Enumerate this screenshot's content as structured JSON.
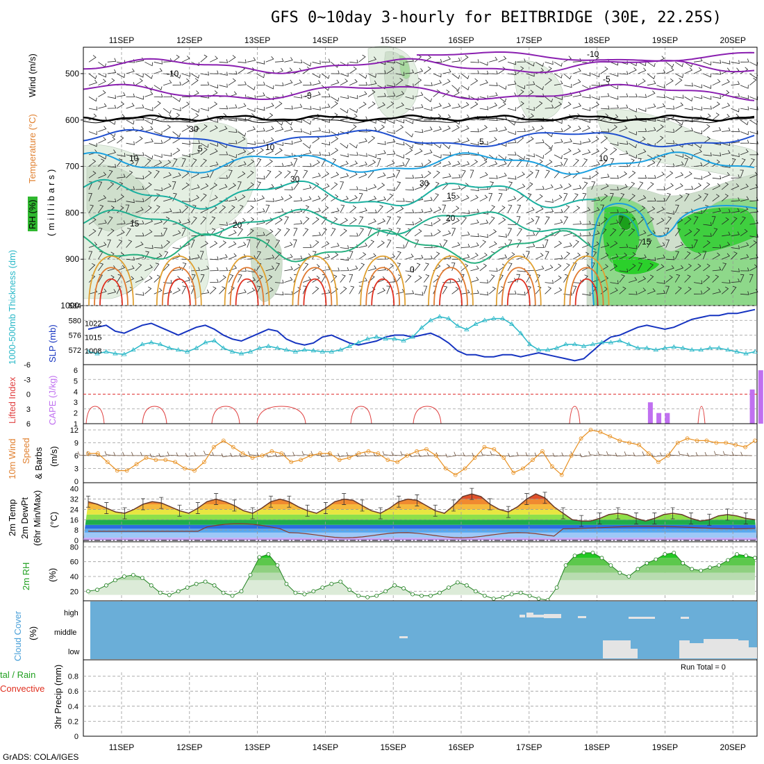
{
  "title": "GFS 0~10day 3-hourly for BEITBRIDGE (30E, 22.25S)",
  "footer": "GrADS: COLA/IGES",
  "dates": [
    "11SEP",
    "12SEP",
    "13SEP",
    "14SEP",
    "15SEP",
    "16SEP",
    "17SEP",
    "18SEP",
    "19SEP",
    "20SEP"
  ],
  "colors": {
    "purple": "#8a1fb0",
    "black": "#000000",
    "blue": "#1f4fcf",
    "cyan": "#1aa0e0",
    "teal": "#1ab0a0",
    "orange": "#e0a030",
    "red": "#e03020",
    "slp": "#1533c0",
    "thick": "#2ab8c8",
    "li": "#e04040",
    "cape": "#c070f0",
    "spd": "#e89020",
    "rh": "#20a020",
    "cloud": "#6aaed8",
    "grid": "#999999"
  },
  "panels": {
    "upper": {
      "ylabel_rh": "RH (%)",
      "ylabel_temp": "Temperature (°C)",
      "ylabel_wind": "Wind (m/s)",
      "ylabel_p": "(millibars)",
      "pressure_ticks": [
        "500",
        "600",
        "700",
        "800",
        "900",
        "1000"
      ],
      "contour_labels": [
        "-10",
        "-10",
        "-5",
        "-5",
        "5",
        "5",
        "10",
        "15",
        "15",
        "20",
        "20",
        "15",
        "0",
        "10",
        "10",
        "30",
        "30",
        "30"
      ]
    },
    "thick": {
      "label_thick": "1000-500mb Thickness (dm)",
      "label_slp": "SLP (mb)",
      "left_ticks": [
        "584",
        "580",
        "576",
        "572"
      ],
      "right_ticks": [
        "1022",
        "1015",
        "1008"
      ]
    },
    "li": {
      "label_li": "Lifted Index",
      "label_cape": "CAPE (J/kg)",
      "left_ticks": [
        "-6",
        "-3",
        "0",
        "3",
        "6"
      ],
      "right_ticks": [
        "6",
        "5",
        "4",
        "3",
        "2",
        "1"
      ]
    },
    "wind": {
      "label_10m": "10m Wind",
      "label_speed": "Speed",
      "label_barbs": "& Barbs",
      "unit": "(m/s)",
      "ticks": [
        "12",
        "9",
        "6",
        "3",
        "0"
      ]
    },
    "temp": {
      "label_1": "2m Temp",
      "label_2": "2m DewPt",
      "label_3": "(6hr Min/Max)",
      "unit": "(°C)",
      "ticks": [
        "40",
        "32",
        "24",
        "16",
        "8",
        "0"
      ]
    },
    "rh": {
      "label": "2m RH",
      "unit": "(%)",
      "ticks": [
        "80",
        "60",
        "40",
        "20"
      ]
    },
    "cloud": {
      "label": "Cloud Cover",
      "unit": "(%)",
      "levels": [
        "high",
        "middle",
        "low"
      ]
    },
    "precip": {
      "label_a": "tal / Rain",
      "label_b": "Convective",
      "label_c": "3hr Precip (mm)",
      "run_total": "Run Total = 0",
      "ticks": [
        "0.8",
        "0.6",
        "0.4",
        "0.2",
        "0"
      ]
    }
  },
  "chart_data": [
    {
      "type": "line",
      "title": "1000-500mb Thickness / SLP",
      "series": [
        {
          "name": "SLP (mb)",
          "y_axis": "right",
          "values": [
            1019,
            1020,
            1021,
            1018,
            1017,
            1019,
            1021,
            1022,
            1020,
            1018,
            1016,
            1018,
            1020,
            1021,
            1019,
            1016,
            1014,
            1013,
            1015,
            1017,
            1019,
            1018,
            1014,
            1012,
            1011,
            1012,
            1015,
            1016,
            1014,
            1012,
            1011,
            1012,
            1013,
            1015,
            1016,
            1016,
            1015,
            1016,
            1017,
            1015,
            1012,
            1008,
            1006,
            1006,
            1005,
            1005,
            1006,
            1006,
            1005,
            1006,
            1007,
            1006,
            1005,
            1004,
            1003,
            1004,
            1008,
            1012,
            1015,
            1016,
            1018,
            1020,
            1021,
            1020,
            1019,
            1020,
            1022,
            1024,
            1025,
            1026,
            1026,
            1027,
            1027,
            1028,
            1029
          ]
        },
        {
          "name": "1000-500mb Thickness (dm)",
          "y_axis": "left",
          "values": [
            571.5,
            571.0,
            571.5,
            571.0,
            570.8,
            572.0,
            573.5,
            574.0,
            573.5,
            572.5,
            572.0,
            571.5,
            572.5,
            574.0,
            574.5,
            572.5,
            571.5,
            571.0,
            571.5,
            572.5,
            573.0,
            572.5,
            572.0,
            571.5,
            572.0,
            571.8,
            571.5,
            571.5,
            572.0,
            573.0,
            574.0,
            575.0,
            575.5,
            575.0,
            575.0,
            574.5,
            575.5,
            578.0,
            580.0,
            581.0,
            580.5,
            578.5,
            577.5,
            579.0,
            580.0,
            580.5,
            580.5,
            579.0,
            576.5,
            573.5,
            572.0,
            572.0,
            572.5,
            573.5,
            573.5,
            573.0,
            573.5,
            574.0,
            574.0,
            574.5,
            573.5,
            572.5,
            572.5,
            572.0,
            572.5,
            572.8,
            572.5,
            572.0,
            572.0,
            572.5,
            572.5,
            572.0,
            571.5,
            571.0,
            571.5
          ]
        }
      ]
    },
    {
      "type": "bar",
      "title": "CAPE (J/kg)",
      "x": [
        17.75,
        17.875,
        18.0,
        19.25,
        19.375
      ],
      "values": [
        3.0,
        2.0,
        2.0,
        4.2,
        6.0
      ],
      "ylim": [
        1,
        6
      ]
    },
    {
      "type": "line",
      "title": "10m Wind Speed",
      "values": [
        6.5,
        6.5,
        4.5,
        2.5,
        2.5,
        4.0,
        5.5,
        5.0,
        5.0,
        4.5,
        3.0,
        2.5,
        4.5,
        8.0,
        9.5,
        8.0,
        6.5,
        5.5,
        6.0,
        7.0,
        6.5,
        4.5,
        5.0,
        6.0,
        6.5,
        6.5,
        5.0,
        5.5,
        6.5,
        7.0,
        6.5,
        5.0,
        4.5,
        6.0,
        7.0,
        7.5,
        6.0,
        3.0,
        1.5,
        3.0,
        5.5,
        8.0,
        7.5,
        5.5,
        2.0,
        3.0,
        5.0,
        7.0,
        3.5,
        1.5,
        6.0,
        10.0,
        12.0,
        11.5,
        10.5,
        9.5,
        9.0,
        8.5,
        6.5,
        4.5,
        6.0,
        9.0,
        10.0,
        9.5,
        9.5,
        9.0,
        9.0,
        8.5,
        8.0,
        9.5
      ]
    },
    {
      "type": "area",
      "title": "2m RH (%)",
      "values": [
        20,
        22,
        28,
        35,
        40,
        42,
        38,
        28,
        18,
        15,
        20,
        25,
        30,
        33,
        28,
        18,
        14,
        20,
        42,
        66,
        70,
        55,
        30,
        18,
        16,
        20,
        25,
        30,
        33,
        22,
        14,
        12,
        14,
        20,
        28,
        24,
        16,
        14,
        14,
        18,
        25,
        32,
        28,
        20,
        14,
        10,
        12,
        16,
        18,
        14,
        10,
        8,
        25,
        55,
        68,
        72,
        72,
        65,
        55,
        45,
        40,
        50,
        58,
        63,
        70,
        72,
        58,
        50,
        48,
        52,
        55,
        62,
        70,
        68,
        65
      ]
    },
    {
      "type": "area",
      "title": "2m Temp (°C)",
      "values": [
        30,
        28,
        25,
        22,
        21,
        24,
        28,
        30,
        29,
        26,
        23,
        21,
        25,
        30,
        32,
        30,
        27,
        23,
        21,
        25,
        30,
        32,
        30,
        26,
        23,
        21,
        25,
        30,
        32,
        31,
        27,
        23,
        21,
        25,
        30,
        32,
        31,
        27,
        23,
        21,
        27,
        34,
        36,
        34,
        28,
        24,
        22,
        26,
        32,
        36,
        33,
        26,
        21,
        16,
        15,
        15,
        17,
        20,
        21,
        20,
        17,
        15,
        17,
        20,
        21,
        20,
        17,
        15,
        16,
        19,
        20,
        19,
        17,
        16
      ]
    }
  ]
}
